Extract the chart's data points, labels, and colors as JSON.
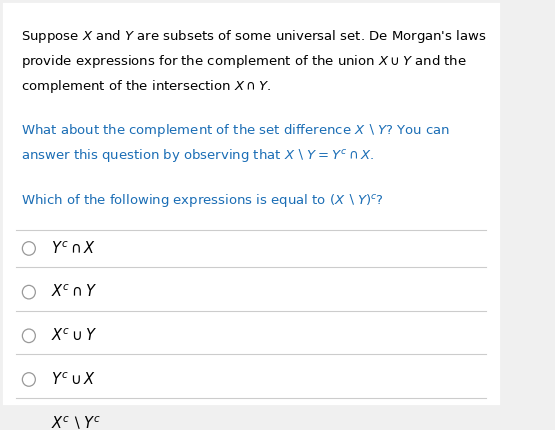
{
  "background_color": "#f0f0f0",
  "panel_color": "#ffffff",
  "text_color": "#000000",
  "blue_color": "#1a6db5",
  "paragraph1_line1": "Suppose $X$ and $Y$ are subsets of some universal set. De Morgan's laws",
  "paragraph1_line2": "provide expressions for the complement of the union $X \\cup Y$ and the",
  "paragraph1_line3": "complement of the intersection $X \\cap Y$.",
  "paragraph2_line1": "What about the complement of the set difference $X \\setminus Y$? You can",
  "paragraph2_line2": "answer this question by observing that $X \\setminus Y = Y^c \\cap X$.",
  "paragraph3": "Which of the following expressions is equal to $(X \\setminus Y)^c$?",
  "options": [
    "$Y^c \\cap X$",
    "$X^c \\cap Y$",
    "$X^c \\cup Y$",
    "$Y^c \\cup X$",
    "$X^c \\setminus Y^c$"
  ],
  "divider_color": "#cccccc",
  "figsize": [
    5.55,
    4.3
  ],
  "dpi": 100
}
